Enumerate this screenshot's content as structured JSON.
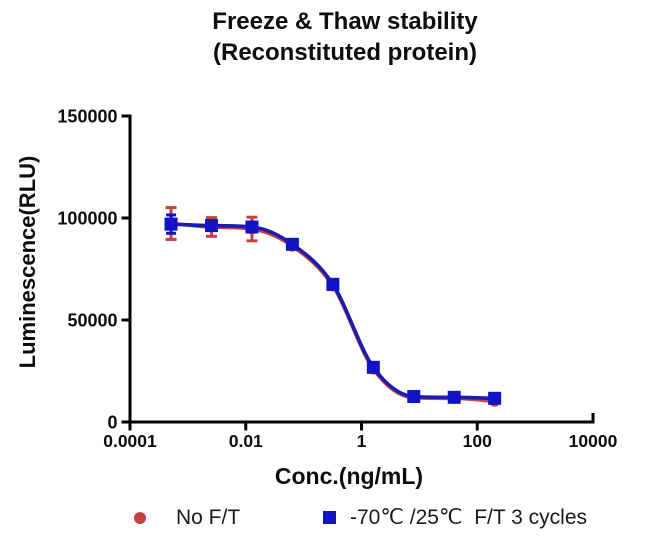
{
  "title": {
    "line1": "Freeze & Thaw stability",
    "line2": "(Reconstituted protein)"
  },
  "axes": {
    "x": {
      "label": "Conc.(ng/mL)",
      "scale": "log",
      "min": 0.0001,
      "max": 10000,
      "ticks": [
        {
          "value": 0.0001,
          "label": "0.0001"
        },
        {
          "value": 0.01,
          "label": "0.01"
        },
        {
          "value": 1,
          "label": "1"
        },
        {
          "value": 100,
          "label": "100"
        },
        {
          "value": 10000,
          "label": "10000"
        }
      ]
    },
    "y": {
      "label": "Luminescence(RLU)",
      "min": 0,
      "max": 150000,
      "ticks": [
        {
          "value": 0,
          "label": "0"
        },
        {
          "value": 50000,
          "label": "50000"
        },
        {
          "value": 100000,
          "label": "100000"
        },
        {
          "value": 150000,
          "label": "150000"
        }
      ]
    }
  },
  "legend": {
    "position": "bottom",
    "items": [
      {
        "label": "No F/T",
        "marker": "circle",
        "color": "#c4423f"
      },
      {
        "label": "-70℃ /25℃  F/T 3 cycles",
        "marker": "square",
        "color": "#1212c6"
      }
    ]
  },
  "chart_data": {
    "type": "line",
    "title": "Freeze & Thaw stability (Reconstituted protein)",
    "xlabel": "Conc.(ng/mL)",
    "ylabel": "Luminescence(RLU)",
    "x_scale": "log",
    "xlim": [
      0.0001,
      10000
    ],
    "ylim": [
      0,
      150000
    ],
    "grid": false,
    "legend_position": "bottom",
    "x": [
      0.000512,
      0.00256,
      0.0128,
      0.064,
      0.32,
      1.6,
      8,
      40,
      200
    ],
    "series": [
      {
        "name": "No F/T",
        "marker": "circle",
        "color": "#c4423f",
        "line_color": "#c4423f",
        "values": [
          97300,
          95600,
          94600,
          86200,
          66700,
          26000,
          11900,
          11600,
          10200
        ],
        "errors": [
          7800,
          4600,
          5800,
          1500,
          1800,
          1200,
          900,
          800,
          700
        ]
      },
      {
        "name": "-70℃ /25℃  F/T 3 cycles",
        "marker": "square",
        "color": "#1212c6",
        "line_color": "#1b1bb0",
        "values": [
          97000,
          96300,
          95600,
          87100,
          67500,
          26800,
          12500,
          12100,
          11600
        ],
        "errors": [
          4500,
          1900,
          1900,
          1300,
          1600,
          1100,
          800,
          700,
          600
        ]
      }
    ]
  }
}
